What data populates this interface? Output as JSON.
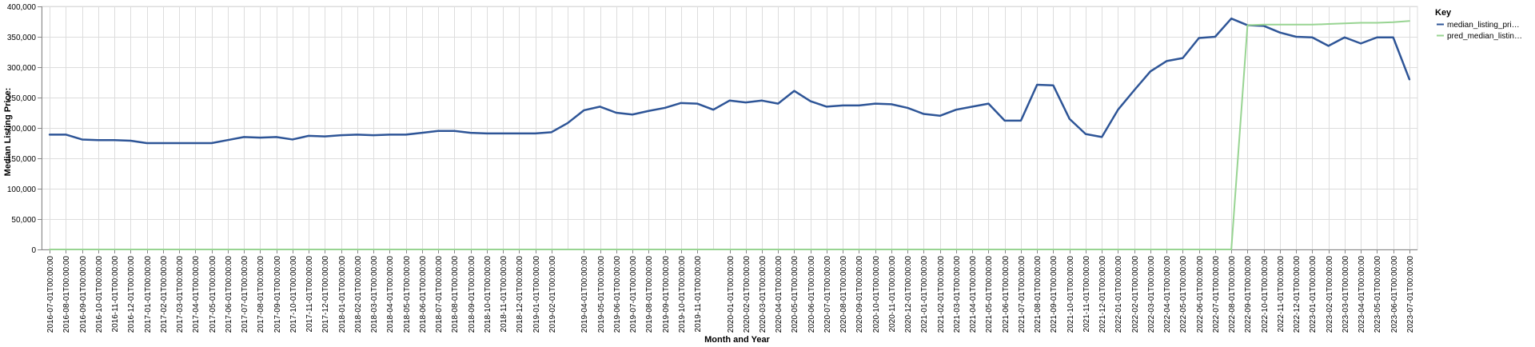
{
  "chart_data": {
    "type": "line",
    "xlabel": "Month and Year",
    "ylabel": "Median Listing Price:",
    "ylim": [
      0,
      400000
    ],
    "y_ticks": [
      "0",
      "50,000",
      "100,000",
      "150,000",
      "200,000",
      "250,000",
      "300,000",
      "350,000",
      "400,000"
    ],
    "y_tick_values": [
      0,
      50000,
      100000,
      150000,
      200000,
      250000,
      300000,
      350000,
      400000
    ],
    "grid": true,
    "legend_position": "right",
    "legend": {
      "title": "Key",
      "entries": [
        "median_listing_pri…",
        "pred_median_listin…"
      ]
    },
    "x": [
      "2016-07-01T00:00:00",
      "2016-08-01T00:00:00",
      "2016-09-01T00:00:00",
      "2016-10-01T00:00:00",
      "2016-11-01T00:00:00",
      "2016-12-01T00:00:00",
      "2017-01-01T00:00:00",
      "2017-02-01T00:00:00",
      "2017-03-01T00:00:00",
      "2017-04-01T00:00:00",
      "2017-05-01T00:00:00",
      "2017-06-01T00:00:00",
      "2017-07-01T00:00:00",
      "2017-08-01T00:00:00",
      "2017-09-01T00:00:00",
      "2017-10-01T00:00:00",
      "2017-11-01T00:00:00",
      "2017-12-01T00:00:00",
      "2018-01-01T00:00:00",
      "2018-02-01T00:00:00",
      "2018-03-01T00:00:00",
      "2018-04-01T00:00:00",
      "2018-05-01T00:00:00",
      "2018-06-01T00:00:00",
      "2018-07-01T00:00:00",
      "2018-08-01T00:00:00",
      "2018-09-01T00:00:00",
      "2018-10-01T00:00:00",
      "2018-11-01T00:00:00",
      "2018-12-01T00:00:00",
      "2019-01-01T00:00:00",
      "2019-02-01T00:00:00",
      "2019-03-01T00:00:00",
      "2019-04-01T00:00:00",
      "2019-05-01T00:00:00",
      "2019-06-01T00:00:00",
      "2019-07-01T00:00:00",
      "2019-08-01T00:00:00",
      "2019-09-01T00:00:00",
      "2019-10-01T00:00:00",
      "2019-11-01T00:00:00",
      "2019-12-01T00:00:00",
      "2020-01-01T00:00:00",
      "2020-02-01T00:00:00",
      "2020-03-01T00:00:00",
      "2020-04-01T00:00:00",
      "2020-05-01T00:00:00",
      "2020-06-01T00:00:00",
      "2020-07-01T00:00:00",
      "2020-08-01T00:00:00",
      "2020-09-01T00:00:00",
      "2020-10-01T00:00:00",
      "2020-11-01T00:00:00",
      "2020-12-01T00:00:00",
      "2021-01-01T00:00:00",
      "2021-02-01T00:00:00",
      "2021-03-01T00:00:00",
      "2021-04-01T00:00:00",
      "2021-05-01T00:00:00",
      "2021-06-01T00:00:00",
      "2021-07-01T00:00:00",
      "2021-08-01T00:00:00",
      "2021-09-01T00:00:00",
      "2021-10-01T00:00:00",
      "2021-11-01T00:00:00",
      "2021-12-01T00:00:00",
      "2022-01-01T00:00:00",
      "2022-02-01T00:00:00",
      "2022-03-01T00:00:00",
      "2022-04-01T00:00:00",
      "2022-05-01T00:00:00",
      "2022-06-01T00:00:00",
      "2022-07-01T00:00:00",
      "2022-08-01T00:00:00",
      "2022-09-01T00:00:00",
      "2022-10-01T00:00:00",
      "2022-11-01T00:00:00",
      "2022-12-01T00:00:00",
      "2023-01-01T00:00:00",
      "2023-02-01T00:00:00",
      "2023-03-01T00:00:00",
      "2023-04-01T00:00:00",
      "2023-05-01T00:00:00",
      "2023-06-01T00:00:00",
      "2023-07-01T00:00:00"
    ],
    "x_tick_labels": [
      "2016-07-01T00:00:00",
      "2016-08-01T00:00:00",
      "2016-09-01T00:00:00",
      "2016-10-01T00:00:00",
      "2016-11-01T00:00:00",
      "2016-12-01T00:00:00",
      "2017-01-01T00:00:00",
      "2017-02-01T00:00:00",
      "2017-03-01T00:00:00",
      "2017-04-01T00:00:00",
      "2017-05-01T00:00:00",
      "2017-06-01T00:00:00",
      "2017-07-01T00:00:00",
      "2017-08-01T00:00:00",
      "2017-09-01T00:00:00",
      "2017-10-01T00:00:00",
      "2017-11-01T00:00:00",
      "2017-12-01T00:00:00",
      "2018-01-01T00:00:00",
      "2018-02-01T00:00:00",
      "2018-03-01T00:00:00",
      "2018-04-01T00:00:00",
      "2018-05-01T00:00:00",
      "2018-06-01T00:00:00",
      "2018-07-01T00:00:00",
      "2018-08-01T00:00:00",
      "2018-09-01T00:00:00",
      "2018-10-01T00:00:00",
      "2018-11-01T00:00:00",
      "2018-12-01T00:00:00",
      "2019-01-01T00:00:00",
      "2019-02-01T00:00:00",
      "2019-04-01T00:00:00",
      "2019-05-01T00:00:00",
      "2019-06-01T00:00:00",
      "2019-07-01T00:00:00",
      "2019-08-01T00:00:00",
      "2019-09-01T00:00:00",
      "2019-10-01T00:00:00",
      "2019-11-01T00:00:00",
      "2020-01-01T00:00:00",
      "2020-02-01T00:00:00",
      "2020-03-01T00:00:00",
      "2020-04-01T00:00:00",
      "2020-05-01T00:00:00",
      "2020-06-01T00:00:00",
      "2020-07-01T00:00:00",
      "2020-08-01T00:00:00",
      "2020-09-01T00:00:00",
      "2020-10-01T00:00:00",
      "2020-11-01T00:00:00",
      "2020-12-01T00:00:00",
      "2021-01-01T00:00:00",
      "2021-02-01T00:00:00",
      "2021-03-01T00:00:00",
      "2021-04-01T00:00:00",
      "2021-05-01T00:00:00",
      "2021-06-01T00:00:00",
      "2021-07-01T00:00:00",
      "2021-08-01T00:00:00",
      "2021-09-01T00:00:00",
      "2021-10-01T00:00:00",
      "2021-11-01T00:00:00",
      "2021-12-01T00:00:00",
      "2022-01-01T00:00:00",
      "2022-02-01T00:00:00",
      "2022-03-01T00:00:00",
      "2022-04-01T00:00:00",
      "2022-05-01T00:00:00",
      "2022-06-01T00:00:00",
      "2022-07-01T00:00:00",
      "2022-08-01T00:00:00",
      "2022-09-01T00:00:00",
      "2022-10-01T00:00:00",
      "2022-11-01T00:00:00",
      "2022-12-01T00:00:00",
      "2023-01-01T00:00:00",
      "2023-02-01T00:00:00",
      "2023-03-01T00:00:00",
      "2023-04-01T00:00:00",
      "2023-05-01T00:00:00",
      "2023-06-01T00:00:00",
      "2023-07-01T00:00:00"
    ],
    "series": [
      {
        "name": "median_listing_pri…",
        "color": "#2e5597",
        "values": [
          189000,
          189000,
          181000,
          180000,
          180000,
          179000,
          175000,
          175000,
          175000,
          175000,
          175000,
          180000,
          185000,
          184000,
          185000,
          181000,
          187000,
          186000,
          188000,
          189000,
          188000,
          189000,
          189000,
          192000,
          195000,
          195000,
          192000,
          191000,
          191000,
          191000,
          191000,
          193000,
          208000,
          229000,
          235000,
          225000,
          222000,
          228000,
          233000,
          241000,
          240000,
          230000,
          245000,
          242000,
          245000,
          240000,
          261000,
          244000,
          235000,
          237000,
          237000,
          240000,
          239000,
          233000,
          223000,
          220000,
          230000,
          235000,
          240000,
          212000,
          212000,
          271000,
          270000,
          215000,
          190000,
          185000,
          230000,
          262000,
          293000,
          310000,
          315000,
          348000,
          350000,
          380000,
          369000,
          368000,
          357000,
          350000,
          349000,
          335000,
          349000,
          339000,
          349000,
          349000,
          280000
        ]
      },
      {
        "name": "pred_median_listin…",
        "color": "#98d492",
        "values": [
          0,
          0,
          0,
          0,
          0,
          0,
          0,
          0,
          0,
          0,
          0,
          0,
          0,
          0,
          0,
          0,
          0,
          0,
          0,
          0,
          0,
          0,
          0,
          0,
          0,
          0,
          0,
          0,
          0,
          0,
          0,
          0,
          0,
          0,
          0,
          0,
          0,
          0,
          0,
          0,
          0,
          0,
          0,
          0,
          0,
          0,
          0,
          0,
          0,
          0,
          0,
          0,
          0,
          0,
          0,
          0,
          0,
          0,
          0,
          0,
          0,
          0,
          0,
          0,
          0,
          0,
          0,
          0,
          0,
          0,
          0,
          0,
          0,
          0,
          369000,
          370000,
          370000,
          370000,
          370000,
          371000,
          372000,
          373000,
          373000,
          374000,
          376000
        ]
      }
    ]
  }
}
